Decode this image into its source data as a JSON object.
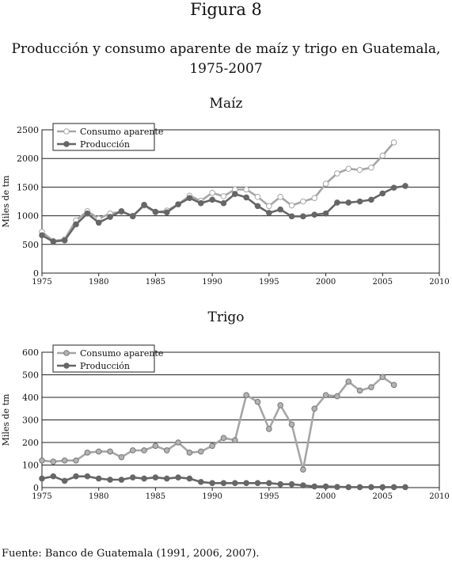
{
  "figure_label": "Figura 8",
  "title_line1": "Producción y consumo aparente de maíz y trigo en Guatemala,",
  "title_line2": "1975-2007",
  "source": "Fuente: Banco de Guatemala (1991, 2006, 2007).",
  "chart_data": [
    {
      "type": "line",
      "title": "Maíz",
      "xlabel": "",
      "ylabel": "Miles de tm",
      "xlim": [
        1975,
        2010
      ],
      "ylim": [
        0,
        2500
      ],
      "xticks": [
        1975,
        1980,
        1985,
        1990,
        1995,
        2000,
        2005,
        2010
      ],
      "yticks": [
        0,
        500,
        1000,
        1500,
        2000,
        2500
      ],
      "grid": true,
      "legend": "top-left",
      "series": [
        {
          "name": "Consumo aparente",
          "color": "#a6a6a6",
          "marker": "hollow",
          "x": [
            1975,
            1976,
            1977,
            1978,
            1979,
            1980,
            1981,
            1982,
            1983,
            1984,
            1985,
            1986,
            1987,
            1988,
            1989,
            1990,
            1991,
            1992,
            1993,
            1994,
            1995,
            1996,
            1997,
            1998,
            1999,
            2000,
            2001,
            2002,
            2003,
            2004,
            2005,
            2006
          ],
          "values": [
            720,
            560,
            590,
            920,
            1080,
            950,
            1040,
            1070,
            1000,
            1180,
            1060,
            1090,
            1200,
            1350,
            1260,
            1400,
            1340,
            1460,
            1460,
            1330,
            1170,
            1330,
            1180,
            1250,
            1310,
            1560,
            1740,
            1820,
            1800,
            1840,
            2050,
            2280
          ]
        },
        {
          "name": "Producción",
          "color": "#666666",
          "marker": "filled",
          "x": [
            1975,
            1976,
            1977,
            1978,
            1979,
            1980,
            1981,
            1982,
            1983,
            1984,
            1985,
            1986,
            1987,
            1988,
            1989,
            1990,
            1991,
            1992,
            1993,
            1994,
            1995,
            1996,
            1997,
            1998,
            1999,
            2000,
            2001,
            2002,
            2003,
            2004,
            2005,
            2006,
            2007
          ],
          "values": [
            660,
            550,
            570,
            850,
            1040,
            880,
            980,
            1080,
            990,
            1190,
            1070,
            1060,
            1200,
            1310,
            1220,
            1280,
            1220,
            1380,
            1320,
            1170,
            1050,
            1110,
            990,
            990,
            1020,
            1040,
            1230,
            1230,
            1250,
            1280,
            1390,
            1490,
            1520
          ]
        }
      ]
    },
    {
      "type": "line",
      "title": "Trigo",
      "xlabel": "",
      "ylabel": "Miles de tm",
      "xlim": [
        1975,
        2010
      ],
      "ylim": [
        0,
        600
      ],
      "xticks": [
        1975,
        1980,
        1985,
        1990,
        1995,
        2000,
        2005,
        2010
      ],
      "yticks": [
        0,
        100,
        200,
        300,
        400,
        500,
        600
      ],
      "grid": true,
      "legend": "top-left",
      "series": [
        {
          "name": "Consumo aparente",
          "color": "#a6a6a6",
          "marker": "filled-light",
          "x": [
            1975,
            1976,
            1977,
            1978,
            1979,
            1980,
            1981,
            1982,
            1983,
            1984,
            1985,
            1986,
            1987,
            1988,
            1989,
            1990,
            1991,
            1992,
            1993,
            1994,
            1995,
            1996,
            1997,
            1998,
            1999,
            2000,
            2001,
            2002,
            2003,
            2004,
            2005,
            2006
          ],
          "values": [
            120,
            115,
            120,
            120,
            155,
            160,
            160,
            135,
            165,
            165,
            185,
            165,
            200,
            155,
            160,
            185,
            220,
            210,
            410,
            380,
            260,
            365,
            280,
            80,
            350,
            410,
            405,
            470,
            430,
            445,
            490,
            455
          ]
        },
        {
          "name": "Producción",
          "color": "#666666",
          "marker": "filled",
          "x": [
            1975,
            1976,
            1977,
            1978,
            1979,
            1980,
            1981,
            1982,
            1983,
            1984,
            1985,
            1986,
            1987,
            1988,
            1989,
            1990,
            1991,
            1992,
            1993,
            1994,
            1995,
            1996,
            1997,
            1998,
            1999,
            2000,
            2001,
            2002,
            2003,
            2004,
            2005,
            2006,
            2007
          ],
          "values": [
            40,
            50,
            30,
            50,
            50,
            40,
            35,
            35,
            45,
            40,
            45,
            40,
            45,
            40,
            25,
            20,
            20,
            20,
            20,
            20,
            20,
            15,
            15,
            10,
            5,
            5,
            3,
            2,
            2,
            2,
            2,
            2,
            2
          ]
        }
      ]
    }
  ]
}
